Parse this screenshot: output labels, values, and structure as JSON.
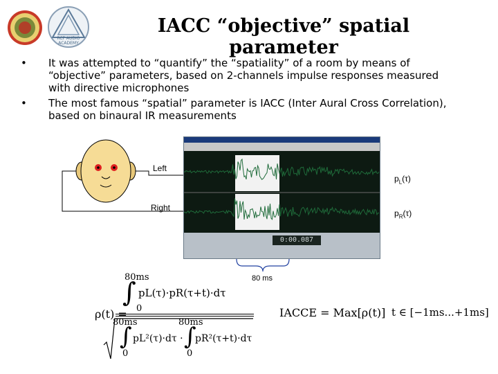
{
  "logos": {
    "left_logo": "university-seal",
    "right_logo": {
      "text_line1": "RCF AUDIO",
      "text_line2": "ACADEMY"
    }
  },
  "title": "IACC “objective” spatial parameter",
  "bullets": [
    {
      "marker": "•",
      "text": "It was attempted to “quantify” the “spatiality” of a room by means of “objective” parameters, based on 2-channels impulse responses measured with directive microphones"
    },
    {
      "marker": "•",
      "text": "The most famous “spatial” parameter is IACC (Inter Aural Cross Correlation), based on binaural IR measurements"
    }
  ],
  "diagram": {
    "left_label": "Left",
    "right_label": "Right",
    "pL_label": "pL(τ)",
    "pR_label": "pR(τ)",
    "time_display": "0:00.087",
    "bracket_label": "80 ms"
  },
  "formula": {
    "rho": "ρ(t) =",
    "upper_limit": "80ms",
    "lower_limit": "0",
    "numerator": "pL(τ)·pR(τ+t)·dτ",
    "den_upper1": "80ms",
    "den_upper2": "80ms",
    "den_lower1": "0",
    "den_lower2": "0",
    "den_term1": "pL²(τ)·dτ ·",
    "den_term2": "pR²(τ+t)·dτ",
    "iacc": "IACCE = Max[ρ(t)]",
    "range": "t ∈ [−1ms...+1ms]"
  },
  "colors": {
    "wave": "#1f6b3a",
    "screen_bg": "#0d1a12",
    "face": "#f6dc96",
    "ear": "#e8c87a"
  }
}
